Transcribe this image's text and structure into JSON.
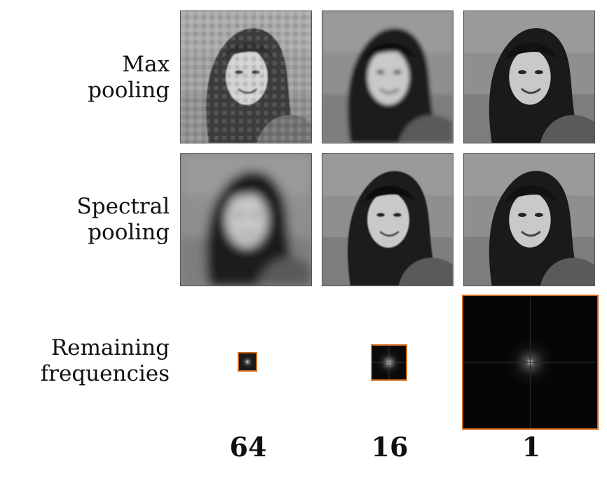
{
  "rows": [
    {
      "label_line1": "Max",
      "label_line2": "pooling"
    },
    {
      "label_line1": "Spectral",
      "label_line2": "pooling"
    },
    {
      "label_line1": "Remaining",
      "label_line2": "frequencies"
    }
  ],
  "factors": [
    "64",
    "16",
    "1"
  ],
  "colors": {
    "frame_border": "#555555",
    "spectrum_border": "#d2691e",
    "spectrum_bg": "#050505"
  }
}
